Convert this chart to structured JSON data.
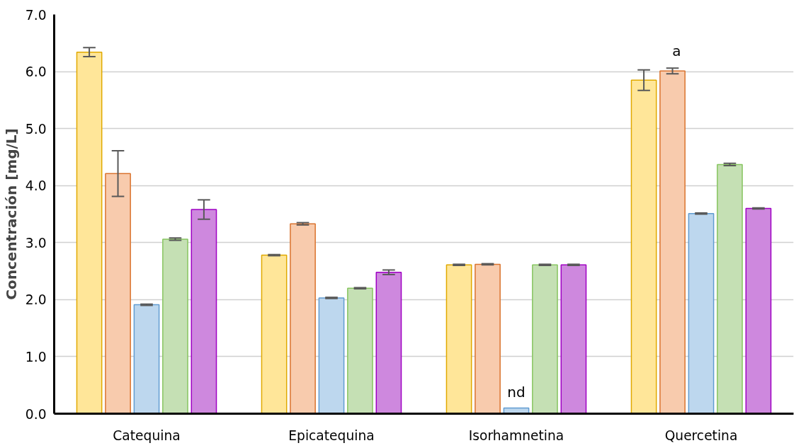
{
  "chart_data": {
    "type": "bar",
    "ylabel": "Concentración [mg/L]",
    "categories": [
      "Catequina",
      "Epicatequina",
      "Isorhamnetina",
      "Quercetina"
    ],
    "series": [
      {
        "color": "#ffe699",
        "values": [
          6.34,
          2.78,
          2.61,
          5.85
        ],
        "errors": [
          0.08,
          0.01,
          0.01,
          0.18
        ]
      },
      {
        "color": "#f8cbad",
        "values": [
          4.21,
          3.33,
          2.62,
          6.01
        ],
        "errors": [
          0.4,
          0.02,
          0.01,
          0.05
        ]
      },
      {
        "color": "#bdd7ee",
        "values": [
          1.91,
          2.03,
          0.1,
          3.51
        ],
        "errors": [
          0.01,
          0.01,
          null,
          0.01
        ]
      },
      {
        "color": "#c5e0b4",
        "values": [
          3.06,
          2.2,
          2.61,
          4.37
        ],
        "errors": [
          0.02,
          0.01,
          0.01,
          0.02
        ]
      },
      {
        "color": "#ce88de",
        "values": [
          3.58,
          2.48,
          2.61,
          3.6
        ],
        "errors": [
          0.17,
          0.04,
          0.01,
          0.01
        ]
      }
    ],
    "ylim": [
      0,
      7
    ],
    "yticks": [
      {
        "value": 0,
        "label": "0.0"
      },
      {
        "value": 1,
        "label": "1.0"
      },
      {
        "value": 2,
        "label": "2.0"
      },
      {
        "value": 3,
        "label": "3.0"
      },
      {
        "value": 4,
        "label": "4.0"
      },
      {
        "value": 5,
        "label": "5.0"
      },
      {
        "value": 6,
        "label": "6.0"
      },
      {
        "value": 7,
        "label": "7.0"
      }
    ],
    "grid": "y",
    "annotations": [
      {
        "text": "nd",
        "x": "Isorhamnetina",
        "y": 0.1
      },
      "a"
    ]
  }
}
